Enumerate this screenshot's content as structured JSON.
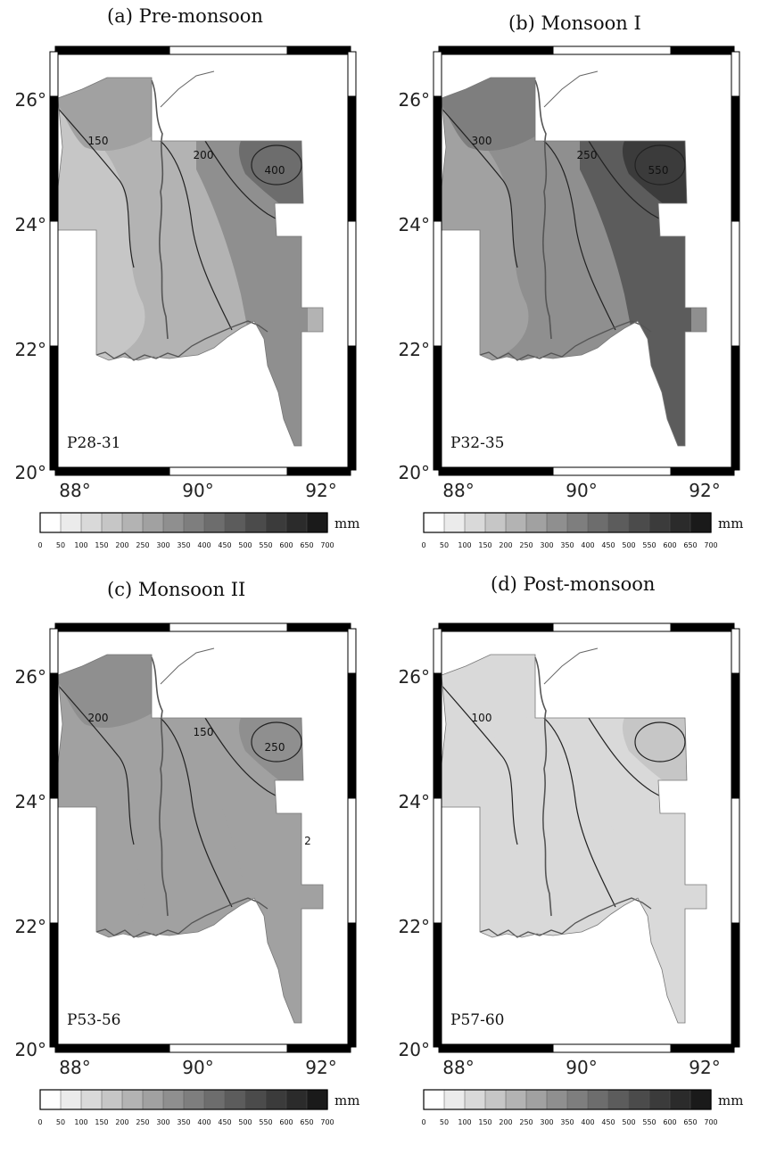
{
  "panels": [
    {
      "title": "(a)  Pre-monsoon",
      "period": "P28-31",
      "lat_ticks": [
        "26°",
        "24°",
        "22°",
        "20°"
      ],
      "lon_ticks": [
        "88°",
        "90°",
        "92°"
      ],
      "contour_labels": [
        "150",
        "200",
        "400"
      ]
    },
    {
      "title": "(b) Monsoon I",
      "period": "P32-35",
      "lat_ticks": [
        "26°",
        "24°",
        "22°",
        "20°"
      ],
      "lon_ticks": [
        "88°",
        "90°",
        "92°"
      ],
      "contour_labels": [
        "300",
        "250",
        "550"
      ]
    },
    {
      "title": "(c) Monsoon II",
      "period": "P53-56",
      "lat_ticks": [
        "26°",
        "24°",
        "22°",
        "20°"
      ],
      "lon_ticks": [
        "88°",
        "90°",
        "92°"
      ],
      "contour_labels": [
        "200",
        "150",
        "250",
        "2"
      ]
    },
    {
      "title": "(d) Post-monsoon",
      "period": "P57-60",
      "lat_ticks": [
        "26°",
        "24°",
        "22°",
        "20°"
      ],
      "lon_ticks": [
        "88°",
        "90°",
        "92°"
      ],
      "contour_labels": [
        "100"
      ]
    }
  ],
  "colorbar": {
    "unit": "mm",
    "ticks": [
      "0",
      "50",
      "100",
      "150",
      "200",
      "250",
      "300",
      "350",
      "400",
      "450",
      "500",
      "550",
      "600",
      "650",
      "700"
    ],
    "colors": [
      "#ffffff",
      "#ebebeb",
      "#d9d9d9",
      "#c6c6c6",
      "#b3b3b3",
      "#a1a1a1",
      "#8f8f8f",
      "#7e7e7e",
      "#6d6d6d",
      "#5c5c5c",
      "#4b4b4b",
      "#3b3b3b",
      "#2b2b2b",
      "#1a1a1a"
    ]
  },
  "fills": {
    "a": {
      "base": "#b3b3b3",
      "west": "#c6c6c6",
      "north": "#a1a1a1",
      "east_high": "#6d6d6d",
      "east_mid": "#8f8f8f"
    },
    "b": {
      "base": "#8f8f8f",
      "west": "#a1a1a1",
      "north": "#7e7e7e",
      "east_high": "#3b3b3b",
      "east_mid": "#5c5c5c"
    },
    "c": {
      "base": "#a1a1a1",
      "west": "#a1a1a1",
      "north": "#8f8f8f",
      "east_high": "#8f8f8f",
      "east_mid": "#a1a1a1"
    },
    "d": {
      "base": "#d9d9d9",
      "west": "#d9d9d9",
      "north": "#d9d9d9",
      "east_high": "#c6c6c6",
      "east_mid": "#d9d9d9"
    }
  }
}
